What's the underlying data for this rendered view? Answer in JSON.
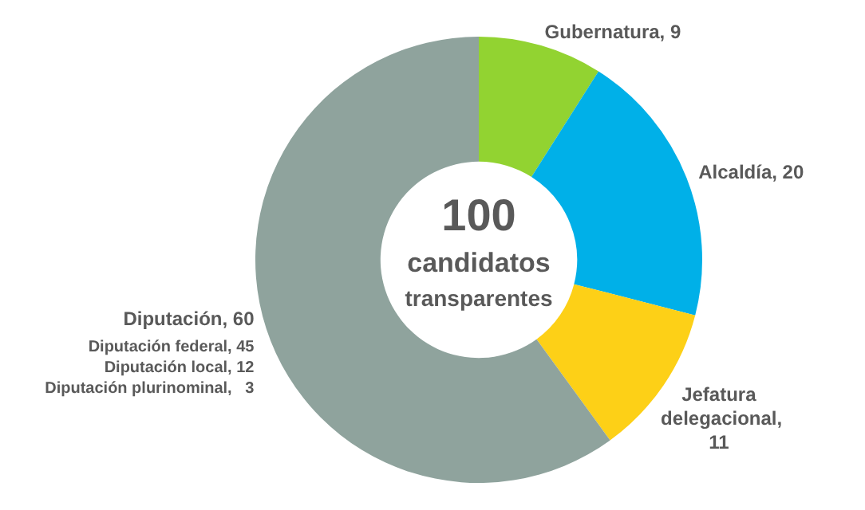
{
  "chart_data": {
    "type": "donut",
    "categories": [
      "Gubernatura",
      "Alcaldía",
      "Jefatura delegacional",
      "Diputación"
    ],
    "values": [
      9,
      20,
      11,
      60
    ],
    "colors": [
      "#92d331",
      "#00b0e8",
      "#fdd017",
      "#8fa39d"
    ],
    "value_labels": [
      ", 9",
      ", 20",
      ", 11",
      ", 60"
    ],
    "legend": false,
    "annotations": [
      "100",
      "candidatos transparentes",
      "Diputación federal, 45",
      "Diputación local, 12",
      "Diputación plurinominal,   3"
    ]
  }
}
